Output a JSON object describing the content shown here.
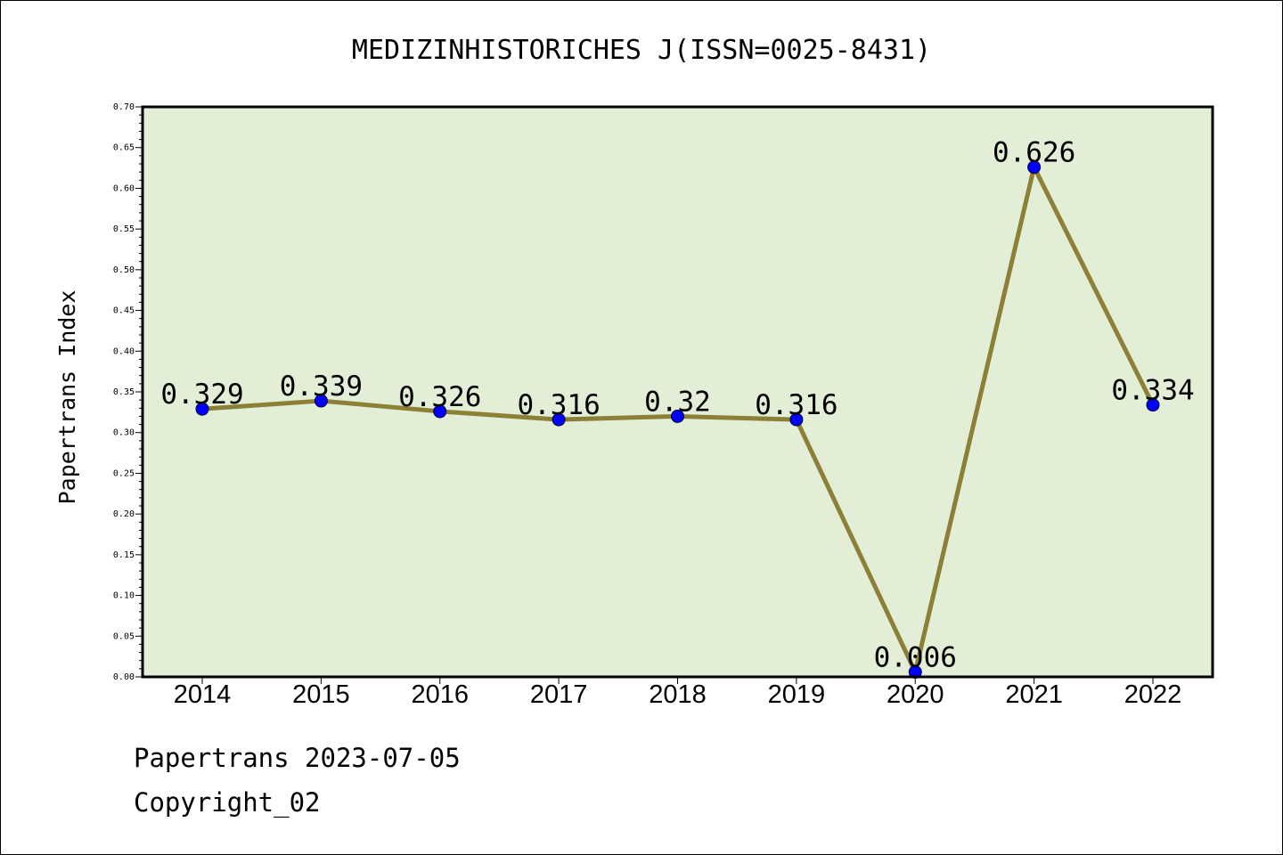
{
  "chart_data": {
    "type": "line",
    "title": "MEDIZINHISTORICHES J(ISSN=0025-8431)",
    "xlabel": "",
    "ylabel": "Papertrans Index",
    "categories": [
      "2014",
      "2015",
      "2016",
      "2017",
      "2018",
      "2019",
      "2020",
      "2021",
      "2022"
    ],
    "series": [
      {
        "values": [
          0.329,
          0.339,
          0.326,
          0.316,
          0.32,
          0.316,
          0.006,
          0.626,
          0.334
        ],
        "labels": [
          "0.329",
          "0.339",
          "0.326",
          "0.316",
          "0.32",
          "0.316",
          "0.006",
          "0.626",
          "0.334"
        ]
      }
    ],
    "ylim": [
      0,
      0.7
    ],
    "ytick_labels": [
      "0.00",
      "0.05",
      "0.10",
      "0.15",
      "0.20",
      "0.25",
      "0.30",
      "0.35",
      "0.40",
      "0.45",
      "0.50",
      "0.55",
      "0.60",
      "0.65",
      "0.70"
    ],
    "grid": false,
    "legend": "none",
    "colors": {
      "plot_background": "#e2efd6",
      "line": "#8c8036",
      "marker": "#0000ff"
    }
  },
  "footer": {
    "date_line": "Papertrans 2023-07-05",
    "copyright_line": "Copyright_02"
  }
}
